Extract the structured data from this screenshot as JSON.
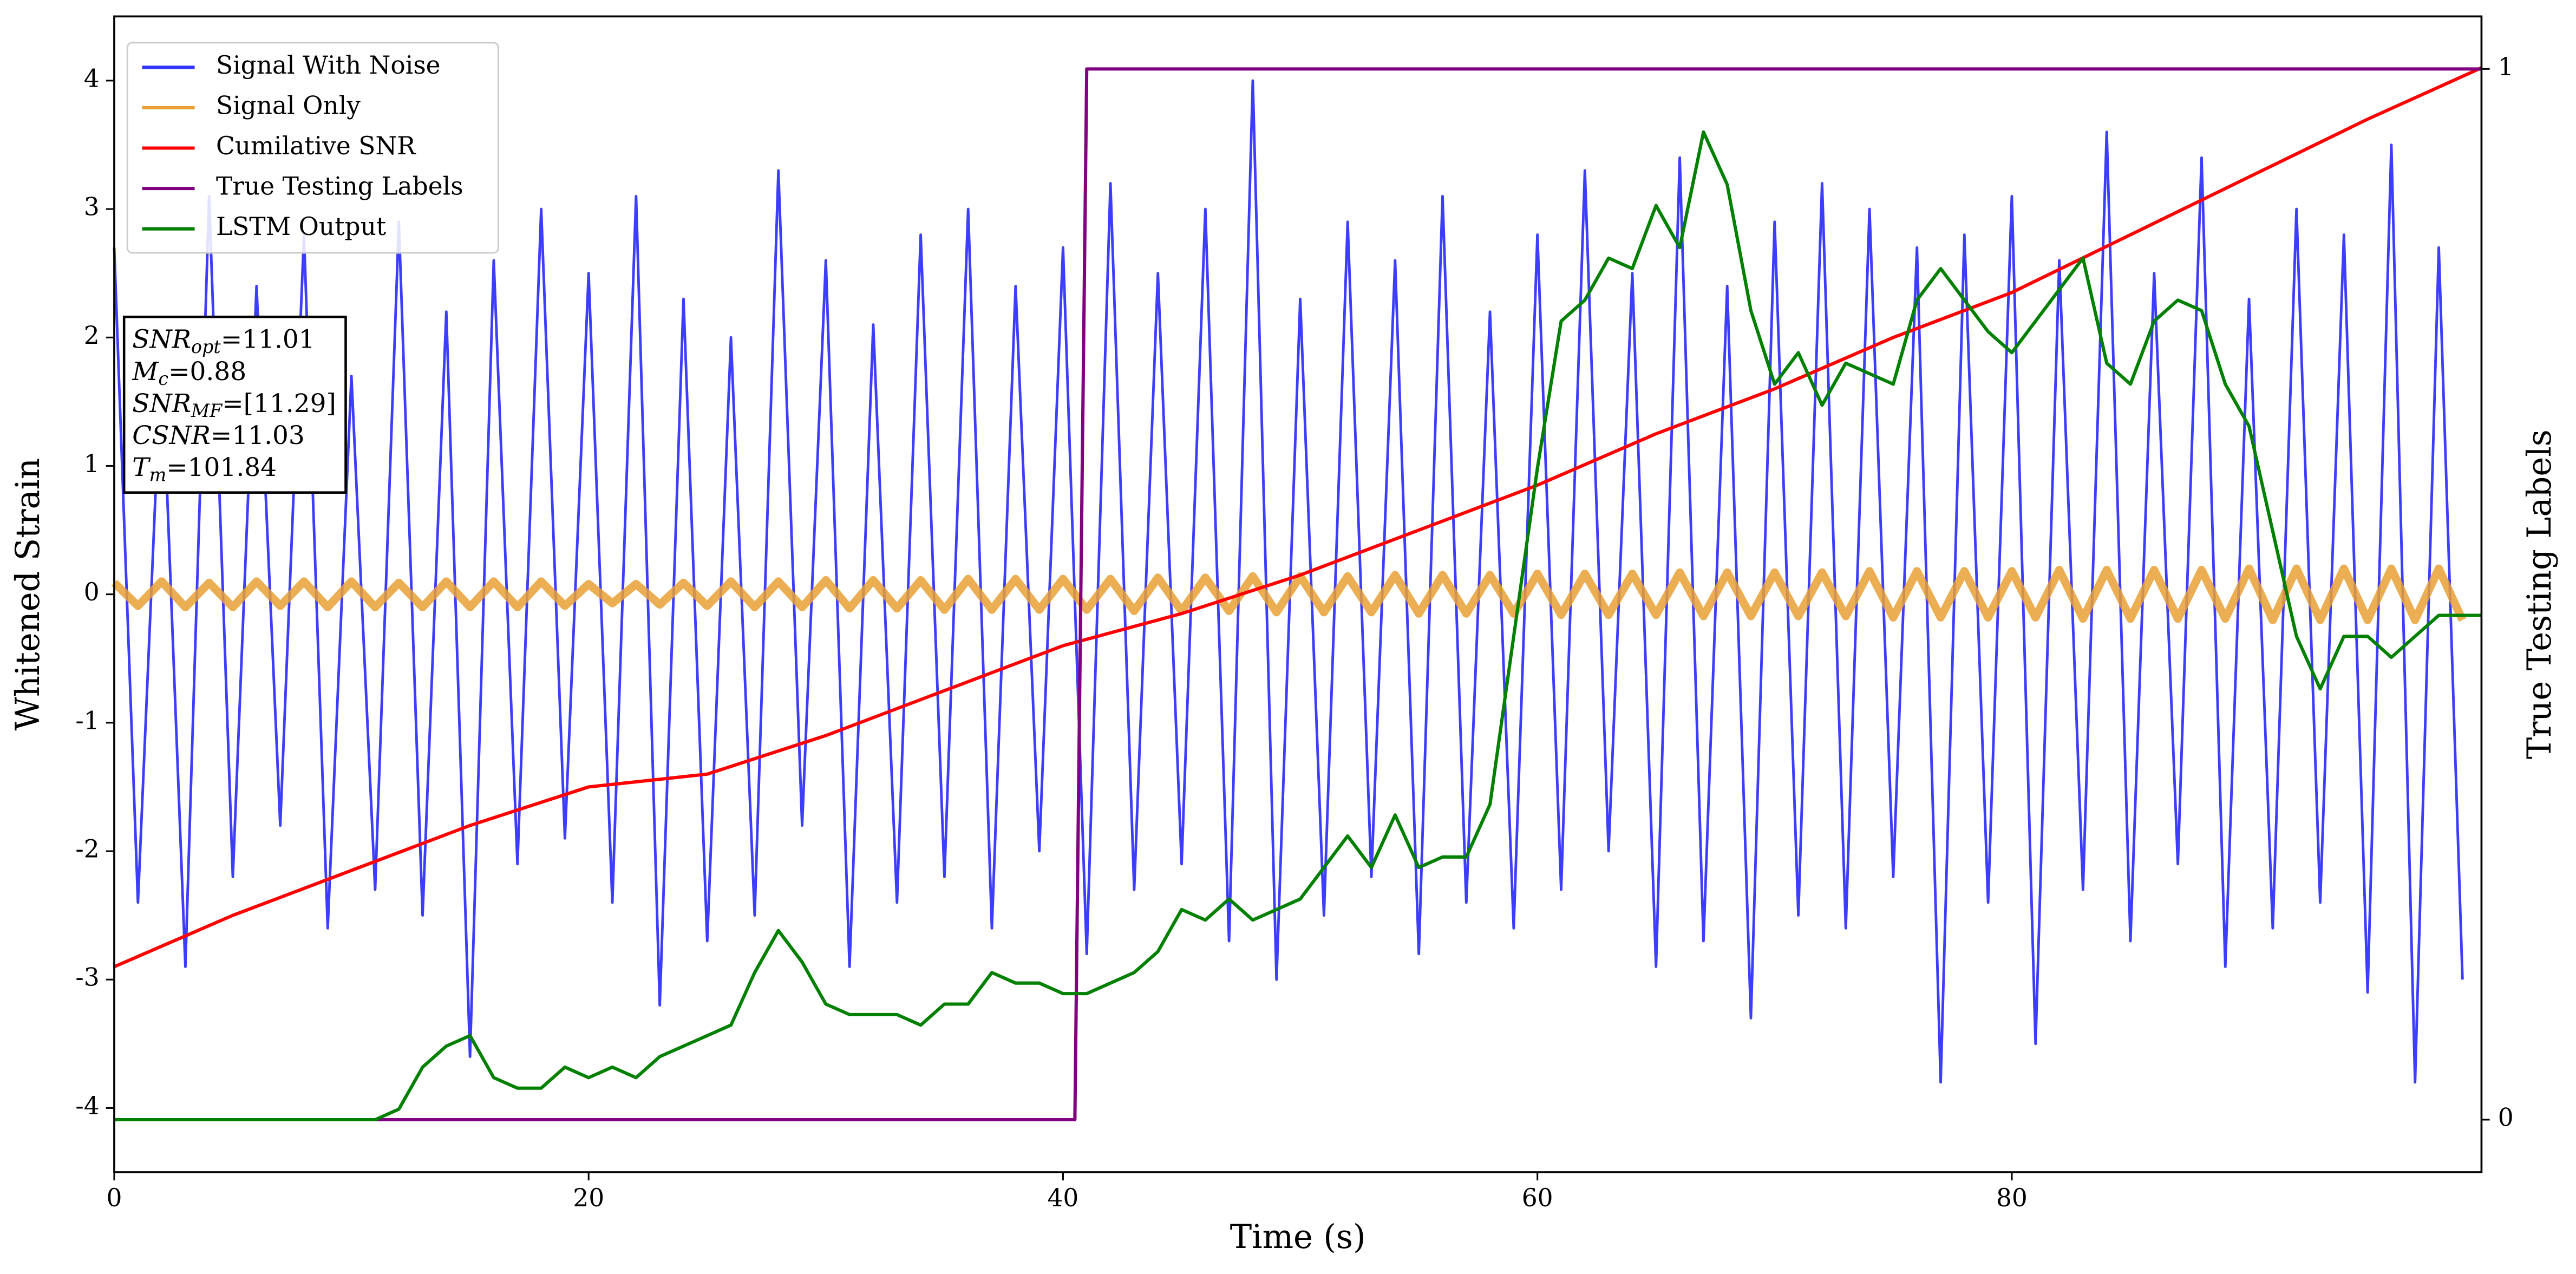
{
  "chart_data": {
    "type": "line",
    "xlabel": "Time (s)",
    "ylabel": "Whitened Strain",
    "y2label": "True Testing Labels",
    "xlim": [
      0,
      99.8
    ],
    "ylim": [
      -4.5,
      4.5
    ],
    "y2lim": [
      -0.05,
      1.05
    ],
    "xticks": [
      0,
      20,
      40,
      60,
      80
    ],
    "yticks": [
      -4,
      -3,
      -2,
      -1,
      0,
      1,
      2,
      3,
      4
    ],
    "y2ticks": [
      0,
      1
    ],
    "legend": "upper left",
    "x": [
      0,
      1,
      2,
      3,
      4,
      5,
      6,
      7,
      8,
      9,
      10,
      11,
      12,
      13,
      14,
      15,
      16,
      17,
      18,
      19,
      20,
      21,
      22,
      23,
      24,
      25,
      26,
      27,
      28,
      29,
      30,
      31,
      32,
      33,
      34,
      35,
      36,
      37,
      38,
      39,
      40,
      41,
      42,
      43,
      44,
      45,
      46,
      47,
      48,
      49,
      50,
      51,
      52,
      53,
      54,
      55,
      56,
      57,
      58,
      59,
      60,
      61,
      62,
      63,
      64,
      65,
      66,
      67,
      68,
      69,
      70,
      71,
      72,
      73,
      74,
      75,
      76,
      77,
      78,
      79,
      80,
      81,
      82,
      83,
      84,
      85,
      86,
      87,
      88,
      89,
      90,
      91,
      92,
      93,
      94,
      95,
      96,
      97,
      98,
      99
    ],
    "series": [
      {
        "name": "Signal With Noise",
        "color": "#3333ff",
        "values": [
          2.7,
          -2.4,
          1.9,
          -2.9,
          3.1,
          -2.2,
          2.4,
          -1.8,
          2.8,
          -2.6,
          1.7,
          -2.3,
          2.9,
          -2.5,
          2.2,
          -3.6,
          2.6,
          -2.1,
          3.0,
          -1.9,
          2.5,
          -2.4,
          3.1,
          -3.2,
          2.3,
          -2.7,
          2.0,
          -2.5,
          3.3,
          -1.8,
          2.6,
          -2.9,
          2.1,
          -2.4,
          2.8,
          -2.2,
          3.0,
          -2.6,
          2.4,
          -2.0,
          2.7,
          -2.8,
          3.2,
          -2.3,
          2.5,
          -2.1,
          3.0,
          -2.7,
          4.0,
          -3.0,
          2.3,
          -2.5,
          2.9,
          -2.2,
          2.6,
          -2.8,
          3.1,
          -2.4,
          2.2,
          -2.6,
          2.8,
          -2.3,
          3.3,
          -2.0,
          2.5,
          -2.9,
          3.4,
          -2.7,
          2.4,
          -3.3,
          2.9,
          -2.5,
          3.2,
          -2.6,
          3.0,
          -2.2,
          2.7,
          -3.8,
          2.8,
          -2.4,
          3.1,
          -3.5,
          2.6,
          -2.3,
          3.6,
          -2.7,
          2.5,
          -2.1,
          3.4,
          -2.9,
          2.3,
          -2.6,
          3.0,
          -2.4,
          2.8,
          -3.1,
          3.5,
          -3.8,
          2.7,
          -3.0
        ]
      },
      {
        "name": "Signal Only",
        "color": "#e8a035",
        "values": [
          0.09,
          -0.09,
          0.1,
          -0.1,
          0.09,
          -0.1,
          0.1,
          -0.09,
          0.1,
          -0.1,
          0.1,
          -0.1,
          0.09,
          -0.1,
          0.1,
          -0.1,
          0.1,
          -0.1,
          0.1,
          -0.09,
          0.08,
          -0.07,
          0.08,
          -0.08,
          0.09,
          -0.09,
          0.1,
          -0.1,
          0.1,
          -0.1,
          0.11,
          -0.11,
          0.11,
          -0.11,
          0.11,
          -0.12,
          0.12,
          -0.12,
          0.12,
          -0.12,
          0.12,
          -0.12,
          0.12,
          -0.13,
          0.13,
          -0.13,
          0.13,
          -0.13,
          0.14,
          -0.14,
          0.14,
          -0.14,
          0.14,
          -0.14,
          0.15,
          -0.15,
          0.15,
          -0.15,
          0.15,
          -0.15,
          0.16,
          -0.16,
          0.16,
          -0.16,
          0.16,
          -0.16,
          0.17,
          -0.17,
          0.17,
          -0.17,
          0.17,
          -0.17,
          0.17,
          -0.17,
          0.18,
          -0.18,
          0.18,
          -0.18,
          0.18,
          -0.18,
          0.18,
          -0.18,
          0.19,
          -0.19,
          0.19,
          -0.19,
          0.19,
          -0.19,
          0.19,
          -0.19,
          0.2,
          -0.2,
          0.2,
          -0.2,
          0.2,
          -0.2,
          0.2,
          -0.2,
          0.2,
          -0.2
        ]
      },
      {
        "name": "Cumilative SNR",
        "color": "#ff0000",
        "x": [
          0,
          5,
          10,
          15,
          20,
          25,
          30,
          35,
          40,
          45,
          50,
          55,
          60,
          65,
          70,
          75,
          80,
          85,
          90,
          95,
          99.8
        ],
        "values": [
          -2.9,
          -2.5,
          -2.15,
          -1.8,
          -1.5,
          -1.4,
          -1.1,
          -0.75,
          -0.4,
          -0.15,
          0.15,
          0.5,
          0.85,
          1.25,
          1.6,
          2.0,
          2.35,
          2.8,
          3.25,
          3.7,
          4.1
        ]
      },
      {
        "name": "True Testing Labels",
        "color": "#800080",
        "axis": "y2",
        "x": [
          0,
          40.5,
          41,
          99.8
        ],
        "values": [
          0,
          0,
          1,
          1
        ]
      },
      {
        "name": "LSTM Output",
        "color": "#008000",
        "axis": "y2",
        "x": [
          0,
          11,
          12,
          13,
          14,
          15,
          16,
          17,
          18,
          19,
          20,
          21,
          22,
          23,
          24,
          25,
          26,
          27,
          28,
          29,
          30,
          31,
          32,
          33,
          34,
          35,
          36,
          37,
          38,
          39,
          40,
          41,
          42,
          43,
          44,
          45,
          46,
          47,
          48,
          49,
          50,
          51,
          52,
          53,
          54,
          55,
          56,
          57,
          58,
          59,
          60,
          61,
          62,
          63,
          64,
          65,
          66,
          67,
          68,
          69,
          70,
          71,
          72,
          73,
          74,
          75,
          76,
          77,
          78,
          79,
          80,
          81,
          82,
          83,
          84,
          85,
          86,
          87,
          88,
          89,
          90,
          91,
          92,
          93,
          94,
          95,
          96,
          97,
          98,
          99.8
        ],
        "values": [
          0,
          0,
          0.01,
          0.05,
          0.07,
          0.08,
          0.04,
          0.03,
          0.03,
          0.05,
          0.04,
          0.05,
          0.04,
          0.06,
          0.07,
          0.08,
          0.09,
          0.14,
          0.18,
          0.15,
          0.11,
          0.1,
          0.1,
          0.1,
          0.09,
          0.11,
          0.11,
          0.14,
          0.13,
          0.13,
          0.12,
          0.12,
          0.13,
          0.14,
          0.16,
          0.2,
          0.19,
          0.21,
          0.19,
          0.2,
          0.21,
          0.24,
          0.27,
          0.24,
          0.29,
          0.24,
          0.25,
          0.25,
          0.3,
          0.46,
          0.62,
          0.76,
          0.78,
          0.82,
          0.81,
          0.87,
          0.83,
          0.94,
          0.89,
          0.77,
          0.7,
          0.73,
          0.68,
          0.72,
          0.71,
          0.7,
          0.78,
          0.81,
          0.78,
          0.75,
          0.73,
          0.76,
          0.79,
          0.82,
          0.72,
          0.7,
          0.76,
          0.78,
          0.77,
          0.7,
          0.66,
          0.56,
          0.46,
          0.41,
          0.46,
          0.46,
          0.44,
          0.46,
          0.48,
          0.48
        ]
      }
    ],
    "annotation": [
      {
        "name": "SNR",
        "sub": "opt",
        "text": "=11.01"
      },
      {
        "name": "M",
        "sub": "c",
        "text": "=0.88"
      },
      {
        "name": "SNR",
        "sub": "MF",
        "text": "=[11.29]"
      },
      {
        "name": "CSNR",
        "text": "=11.03"
      },
      {
        "name": "T",
        "sub": "m",
        "text": "=101.84"
      }
    ]
  }
}
